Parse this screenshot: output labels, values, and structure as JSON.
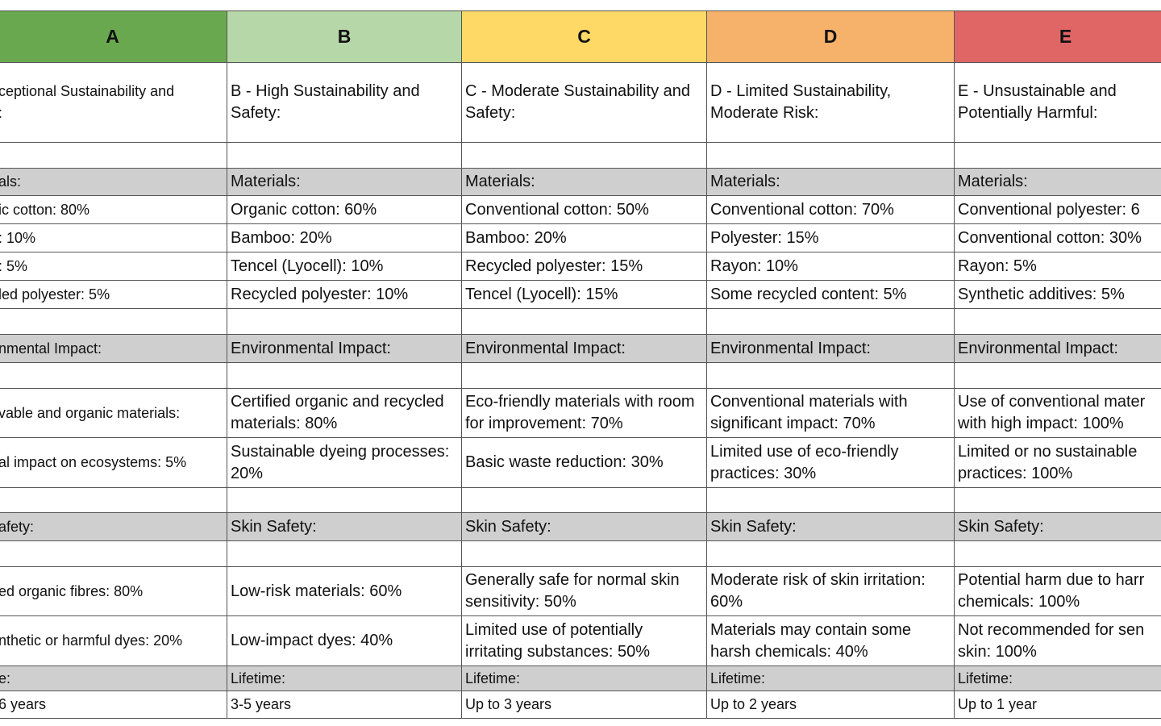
{
  "header": {
    "columns": [
      "A",
      "B",
      "C",
      "D",
      "E"
    ]
  },
  "table": {
    "rows": [
      [
        "ceptional Sustainability and\n:",
        "B - High Sustainability and Safety:",
        "C - Moderate Sustainability and Safety:",
        "D - Limited Sustainability, Moderate Risk:",
        "E - Unsustainable and Potentially Harmful:"
      ],
      [
        "als:",
        "Materials:",
        "Materials:",
        "Materials:",
        "Materials:"
      ],
      [
        "ic cotton: 80%",
        "Organic cotton: 60%",
        "Conventional cotton: 50%",
        "Conventional cotton: 70%",
        "Conventional polyester: 6"
      ],
      [
        ": 10%",
        "Bamboo: 20%",
        "Bamboo: 20%",
        "Polyester: 15%",
        "Conventional cotton: 30%"
      ],
      [
        ": 5%",
        "Tencel (Lyocell): 10%",
        "Recycled polyester: 15%",
        "Rayon: 10%",
        "Rayon: 5%"
      ],
      [
        "led polyester: 5%",
        "Recycled polyester: 10%",
        "Tencel (Lyocell): 15%",
        "Some recycled content: 5%",
        "Synthetic additives: 5%"
      ],
      [
        "nmental Impact:",
        "Environmental Impact:",
        "Environmental Impact:",
        "Environmental Impact:",
        "Environmental Impact:"
      ],
      [
        "vable and organic materials:",
        "Certified organic and recycled materials: 80%",
        "Eco-friendly materials with room for improvement: 70%",
        "Conventional materials with significant impact: 70%",
        "Use of conventional mater\nwith high impact: 100%"
      ],
      [
        "al impact on ecosystems: 5%",
        "Sustainable dyeing processes: 20%",
        "Basic waste reduction: 30%",
        "Limited use of eco-friendly practices: 30%",
        "Limited or no sustainable\npractices: 100%"
      ],
      [
        "afety:",
        "Skin Safety:",
        "Skin Safety:",
        "Skin Safety:",
        "Skin Safety:"
      ],
      [
        "ed organic fibres: 80%",
        "Low-risk materials: 60%",
        "Generally safe for normal skin sensitivity: 50%",
        "Moderate risk of skin irritation: 60%",
        "Potential harm due to harr\nchemicals: 100%"
      ],
      [
        "nthetic or harmful dyes: 20%",
        "Low-impact dyes: 40%",
        "Limited use of potentially irritating substances: 50%",
        "Materials may contain some harsh chemicals: 40%",
        "Not recommended for sen\nskin: 100%"
      ],
      [
        "e:",
        "Lifetime:",
        "Lifetime:",
        "Lifetime:",
        "Lifetime:"
      ],
      [
        "6 years",
        "3-5 years",
        "Up to 3 years",
        "Up to 2 years",
        "Up to 1 year"
      ]
    ]
  }
}
